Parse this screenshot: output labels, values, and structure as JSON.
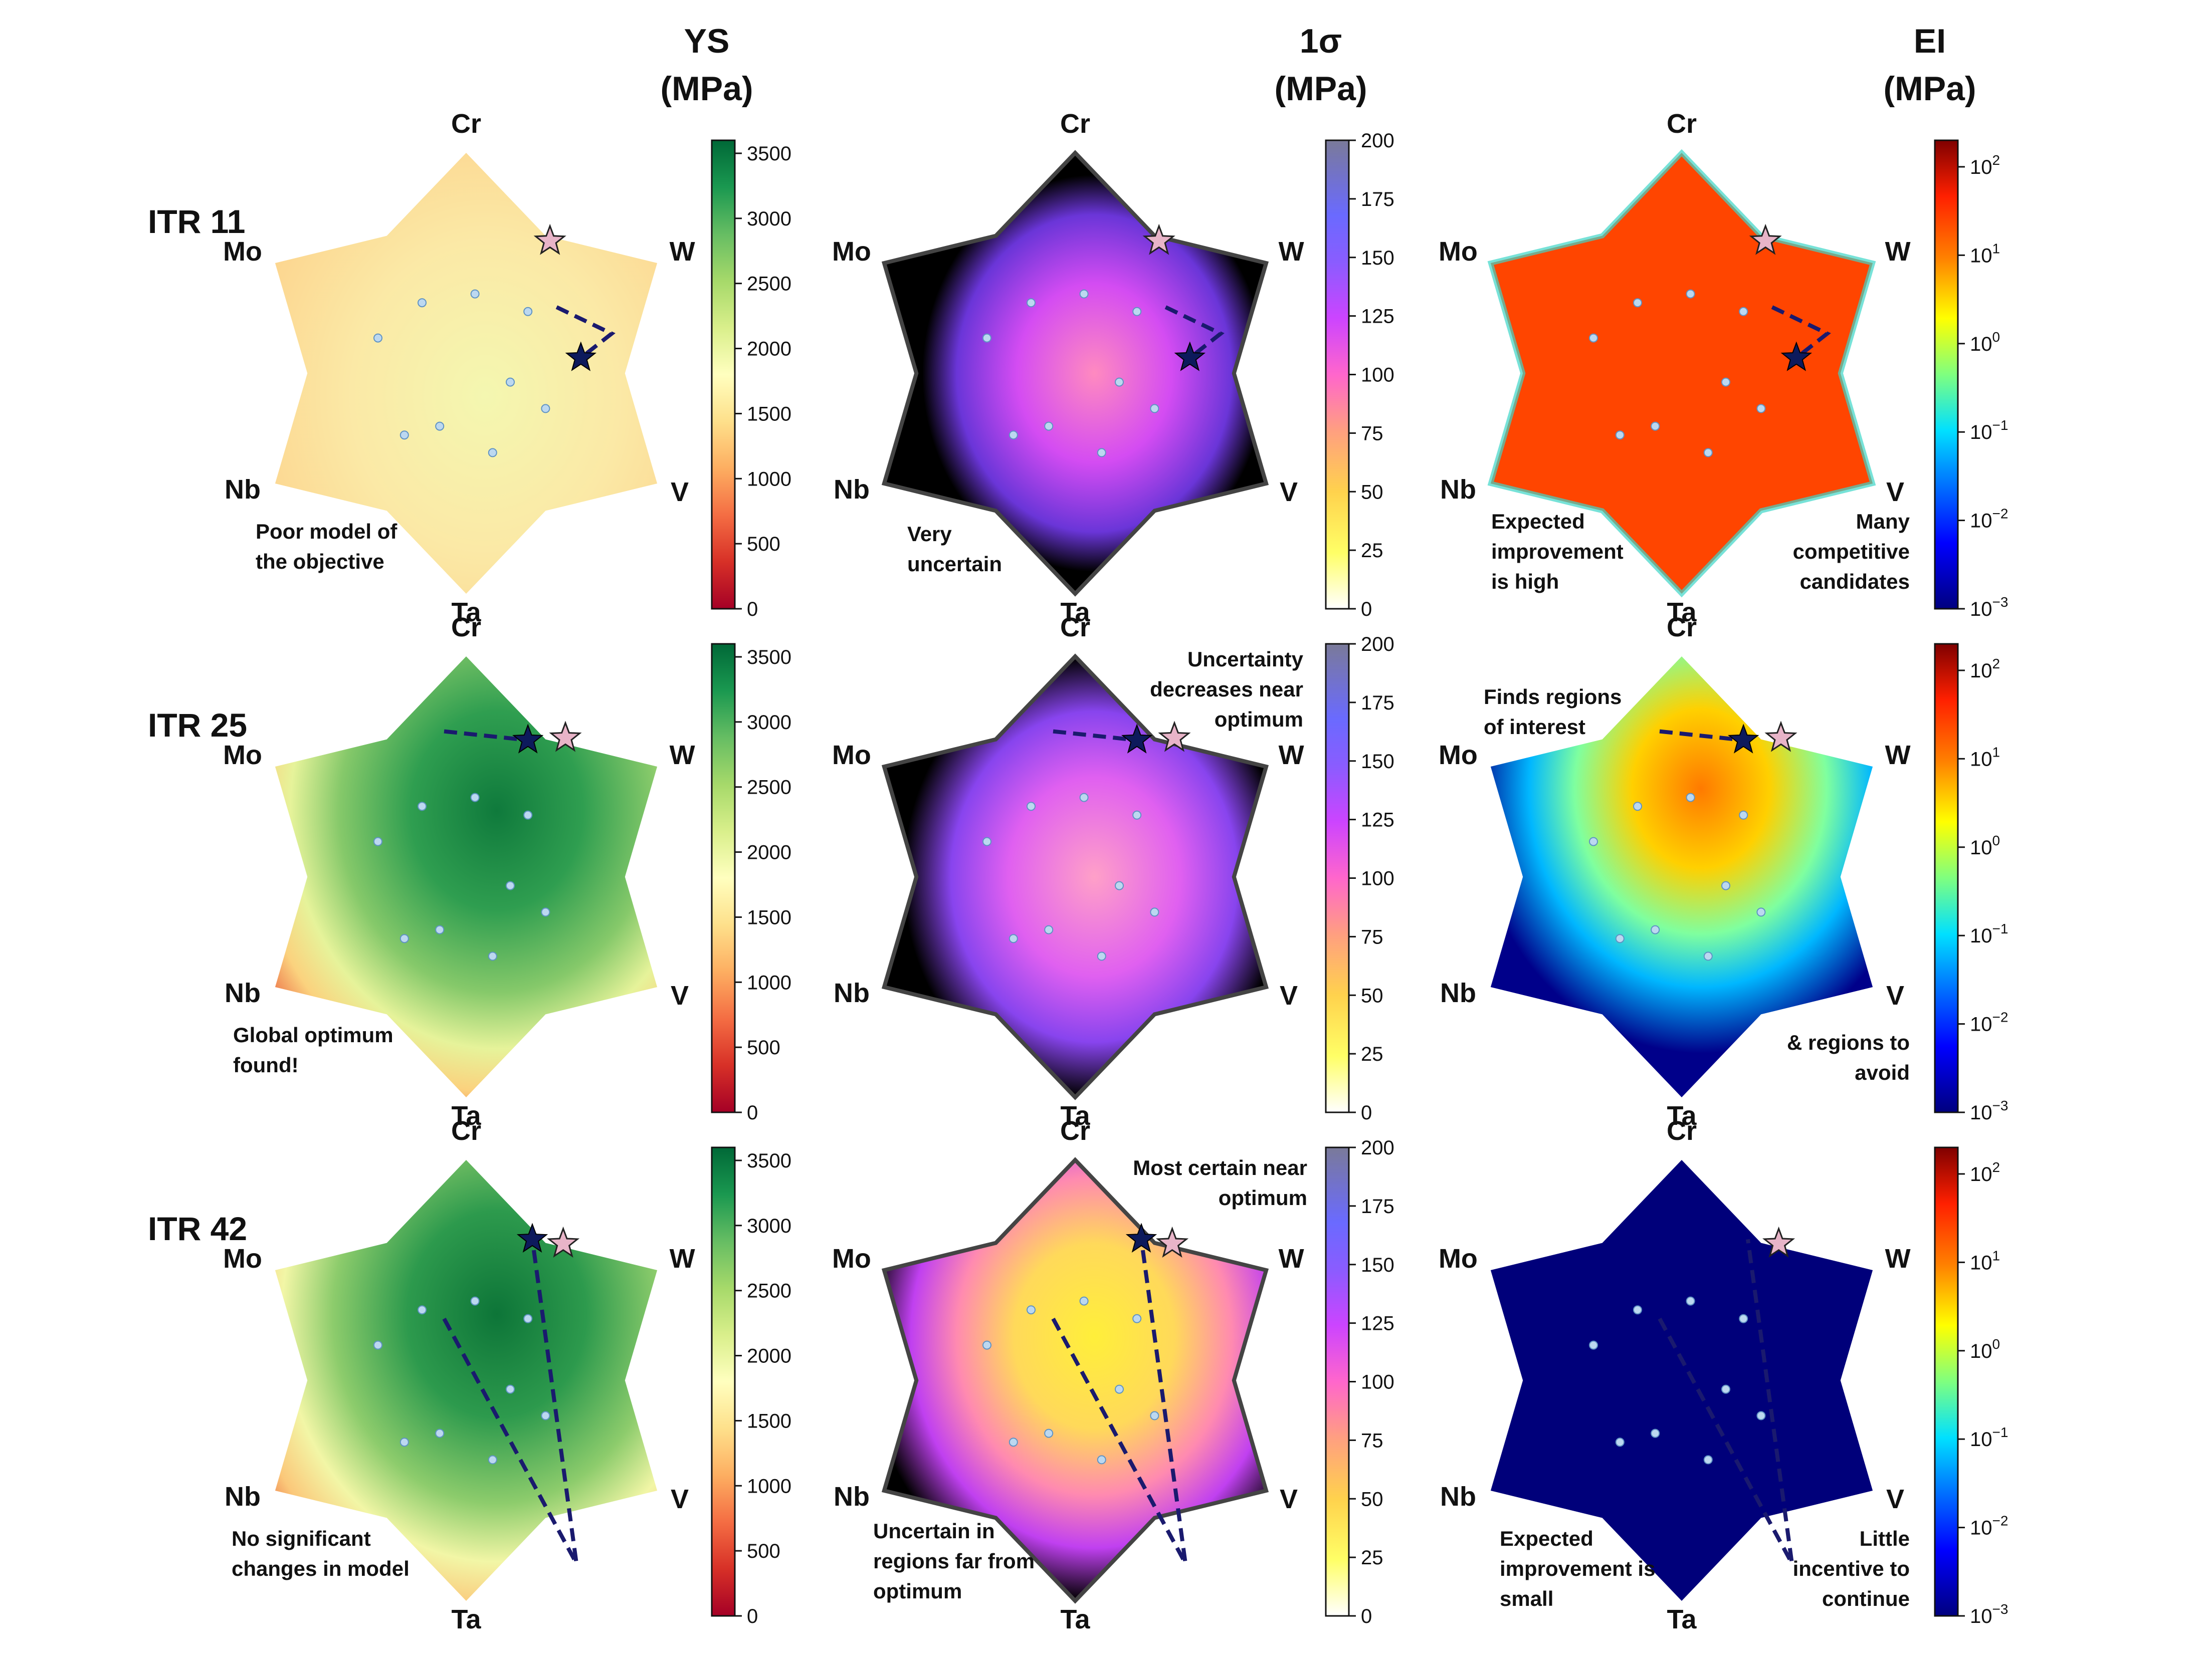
{
  "chart_data": {
    "type": "heatmap",
    "layout": "3x3 grid of hexagonal ternary-style composition maps",
    "columns": [
      {
        "title": "YS",
        "unit": "(MPa)",
        "colormap": "RdYlGn",
        "scale": "linear",
        "ticks": [
          "0",
          "500",
          "1000",
          "1500",
          "2000",
          "2500",
          "3000",
          "3500"
        ],
        "range": [
          0,
          3600
        ]
      },
      {
        "title": "1σ",
        "unit": "(MPa)",
        "colormap": "gnuplot2_r",
        "scale": "linear",
        "ticks": [
          "0",
          "25",
          "50",
          "75",
          "100",
          "125",
          "150",
          "175",
          "200"
        ],
        "range": [
          0,
          200
        ]
      },
      {
        "title": "EI",
        "unit": "(MPa)",
        "colormap": "jet",
        "scale": "log",
        "ticks": [
          {
            "b": "10",
            "e": "−3"
          },
          {
            "b": "10",
            "e": "−2"
          },
          {
            "b": "10",
            "e": "−1"
          },
          {
            "b": "10",
            "e": "0"
          },
          {
            "b": "10",
            "e": "1"
          },
          {
            "b": "10",
            "e": "2"
          }
        ],
        "range": [
          -3,
          2.3
        ]
      }
    ],
    "rows": [
      {
        "label": "ITR 11",
        "annotations": [
          [
            "Poor model of",
            "the objective"
          ],
          [
            "Very",
            "uncertain"
          ],
          [
            "Expected",
            "improvement",
            "is high"
          ],
          [
            "Many",
            "competitive",
            "candidates"
          ]
        ]
      },
      {
        "label": "ITR 25",
        "annotations": [
          [
            "Global optimum",
            "found!"
          ],
          [
            "Uncertainty",
            "decreases near",
            "optimum"
          ],
          [
            "Finds regions",
            "of interest"
          ],
          [
            "& regions to",
            "avoid"
          ]
        ]
      },
      {
        "label": "ITR 42",
        "annotations": [
          [
            "No significant",
            "changes in model"
          ],
          [
            "Most certain near",
            "optimum"
          ],
          [
            "Uncertain in",
            "regions far from",
            "optimum"
          ],
          [
            "Expected",
            "improvement is",
            "small"
          ],
          [
            "Little",
            "incentive to",
            "continue"
          ]
        ]
      }
    ],
    "vertex_labels": [
      "Cr",
      "W",
      "V",
      "Ta",
      "Nb",
      "Mo"
    ],
    "colors": {
      "path_line": "#1a1a6e",
      "best_star": "#0d1a5c",
      "target_star": "#e8b4c8"
    }
  }
}
